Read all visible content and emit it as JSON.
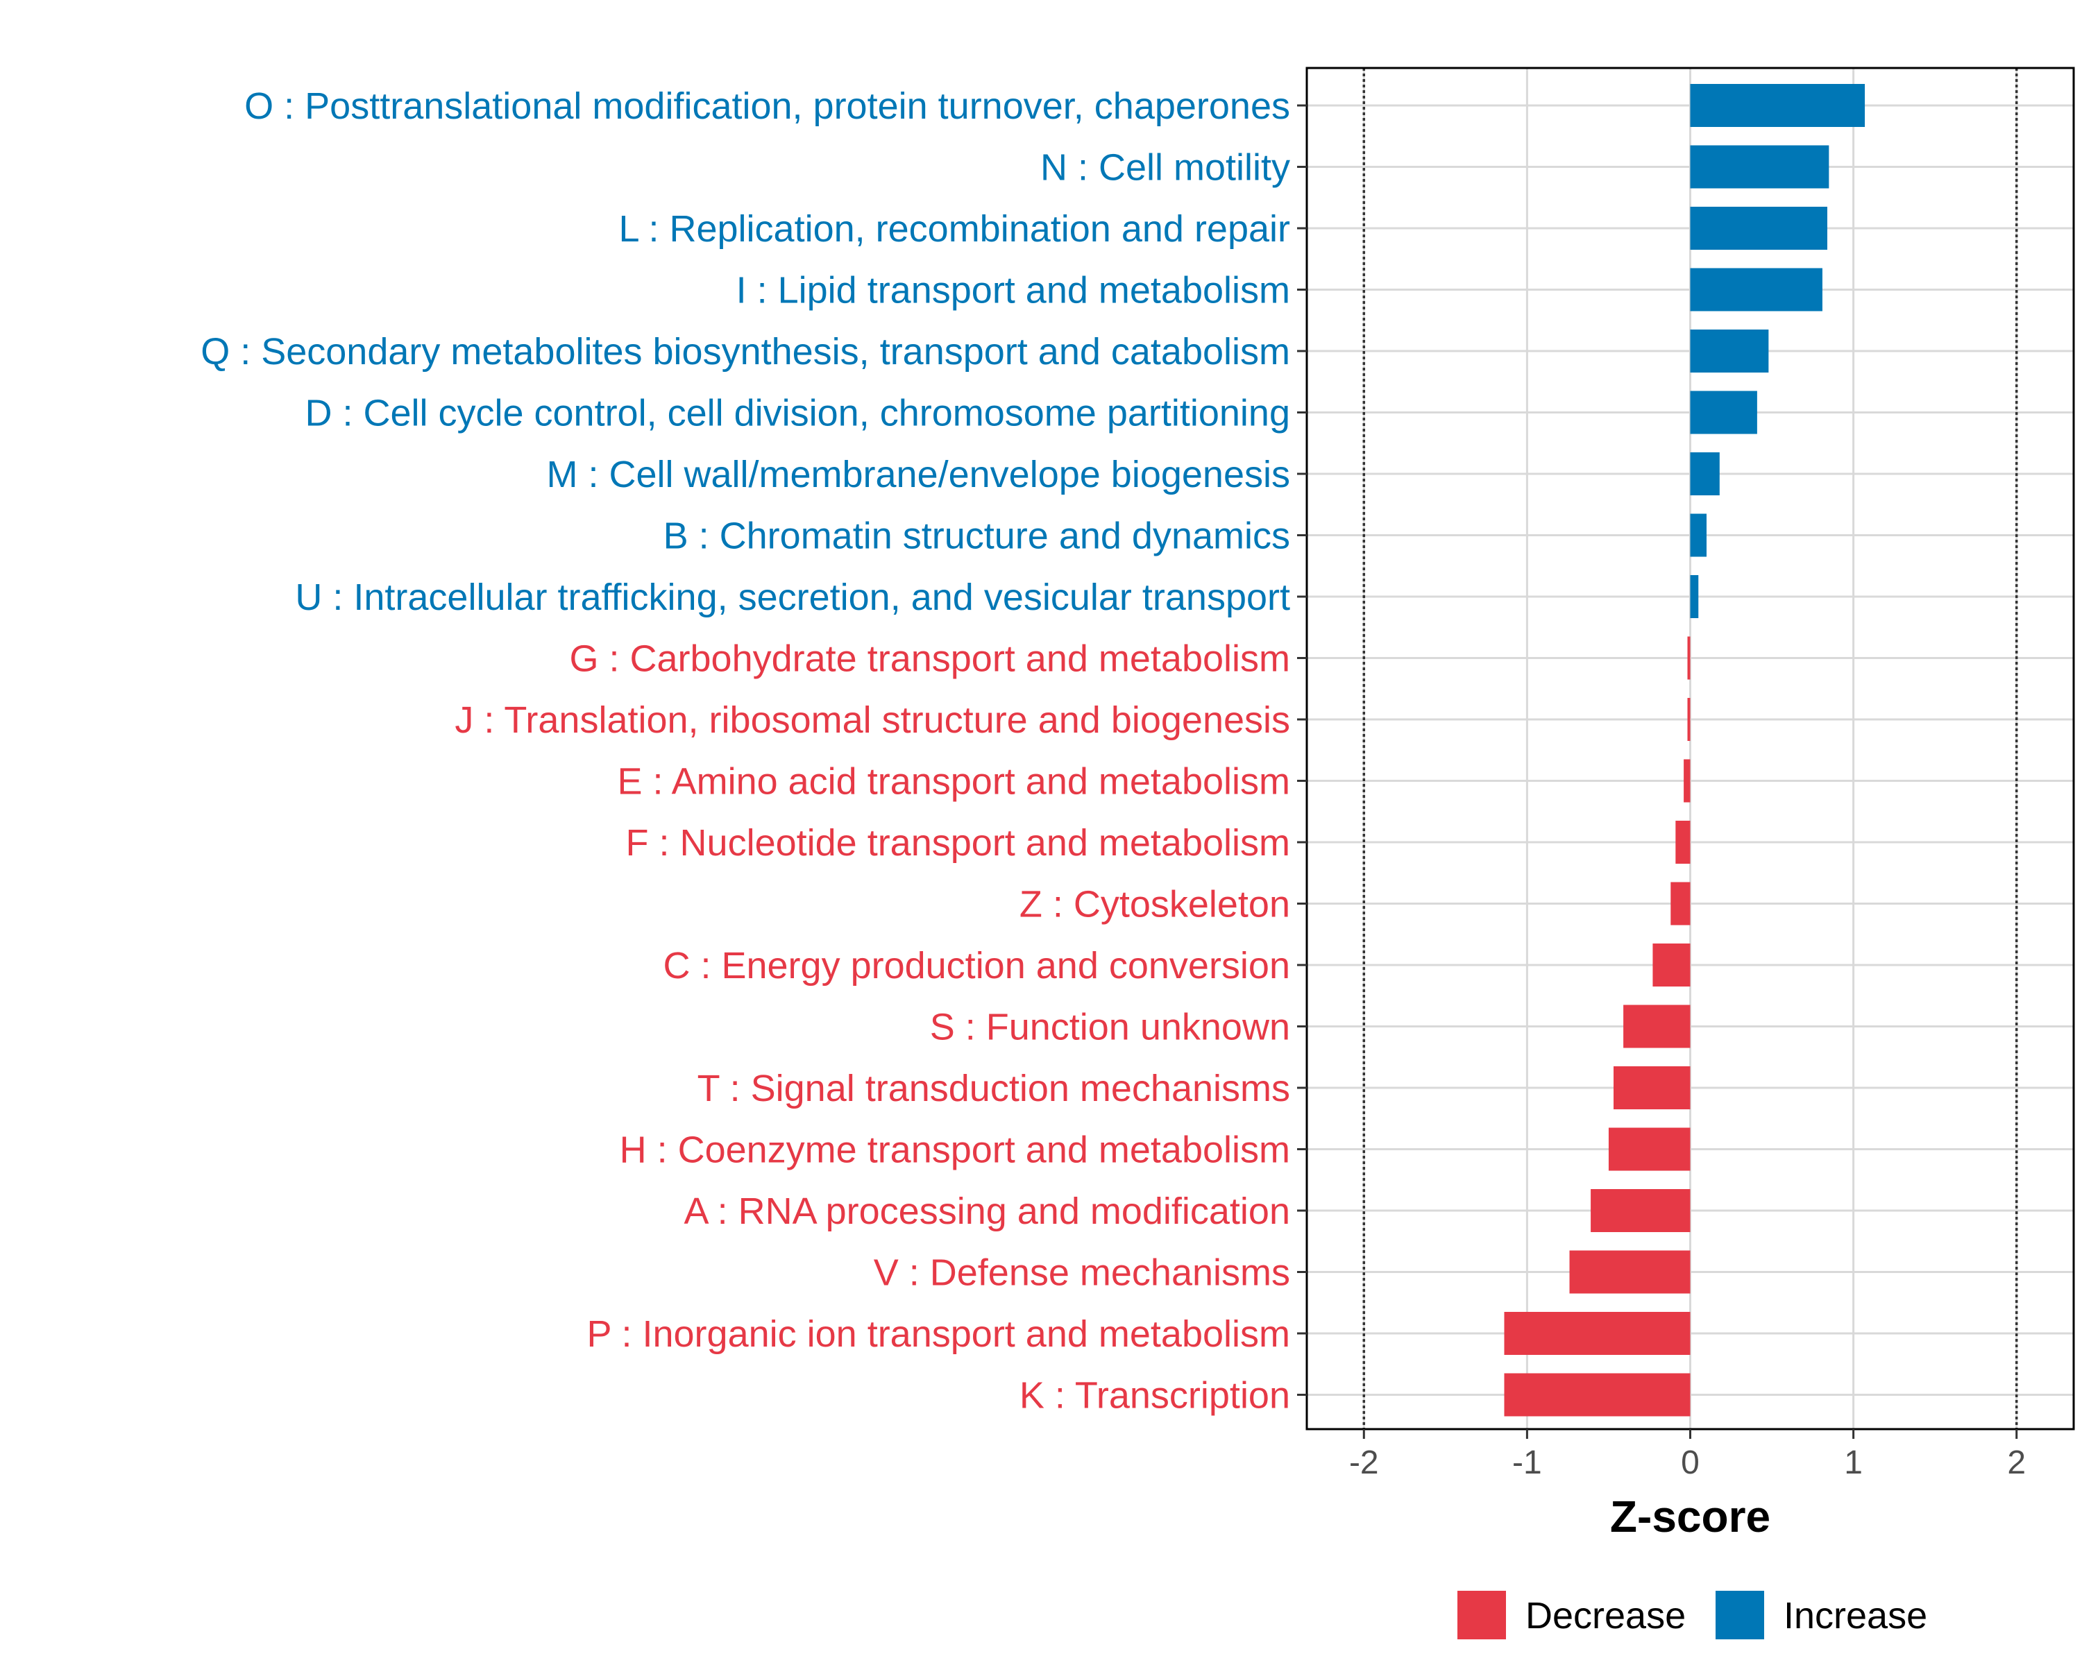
{
  "chart_data": {
    "type": "bar",
    "orientation": "horizontal",
    "title": "",
    "xlabel": "Z-score",
    "ylabel": "",
    "xlim": [
      -2.35,
      2.35
    ],
    "xticks": [
      -2,
      -1,
      0,
      1,
      2
    ],
    "xtick_labels": [
      "-2",
      "-1",
      "0",
      "1",
      "2"
    ],
    "reference_lines": [
      -2,
      2
    ],
    "grid": true,
    "categories": [
      "O : Posttranslational modification, protein turnover, chaperones",
      "N : Cell motility",
      "L : Replication, recombination and repair",
      "I : Lipid transport and metabolism",
      "Q : Secondary metabolites biosynthesis, transport and catabolism",
      "D : Cell cycle control, cell division, chromosome partitioning",
      "M : Cell wall/membrane/envelope biogenesis",
      "B : Chromatin structure and dynamics",
      "U : Intracellular trafficking, secretion, and vesicular transport",
      "G : Carbohydrate transport and metabolism",
      "J : Translation, ribosomal structure and biogenesis",
      "E : Amino acid transport and metabolism",
      "F : Nucleotide transport and metabolism",
      "Z : Cytoskeleton",
      "C : Energy production and conversion",
      "S : Function unknown",
      "T : Signal transduction mechanisms",
      "H : Coenzyme transport and metabolism",
      "A : RNA processing and modification",
      "V : Defense mechanisms",
      "P : Inorganic ion transport and metabolism",
      "K : Transcription"
    ],
    "values": [
      1.07,
      0.85,
      0.84,
      0.81,
      0.48,
      0.41,
      0.18,
      0.1,
      0.05,
      -0.01,
      -0.01,
      -0.04,
      -0.09,
      -0.12,
      -0.23,
      -0.41,
      -0.47,
      -0.5,
      -0.61,
      -0.74,
      -1.14,
      -1.14
    ],
    "groups": [
      "Increase",
      "Increase",
      "Increase",
      "Increase",
      "Increase",
      "Increase",
      "Increase",
      "Increase",
      "Increase",
      "Decrease",
      "Decrease",
      "Decrease",
      "Decrease",
      "Decrease",
      "Decrease",
      "Decrease",
      "Decrease",
      "Decrease",
      "Decrease",
      "Decrease",
      "Decrease",
      "Decrease"
    ],
    "legend": [
      {
        "label": "Decrease",
        "color": "#E63946"
      },
      {
        "label": "Increase",
        "color": "#0077B6"
      }
    ],
    "legend_position": "bottom",
    "colors": {
      "Decrease": "#E63946",
      "Increase": "#0077B6"
    }
  }
}
